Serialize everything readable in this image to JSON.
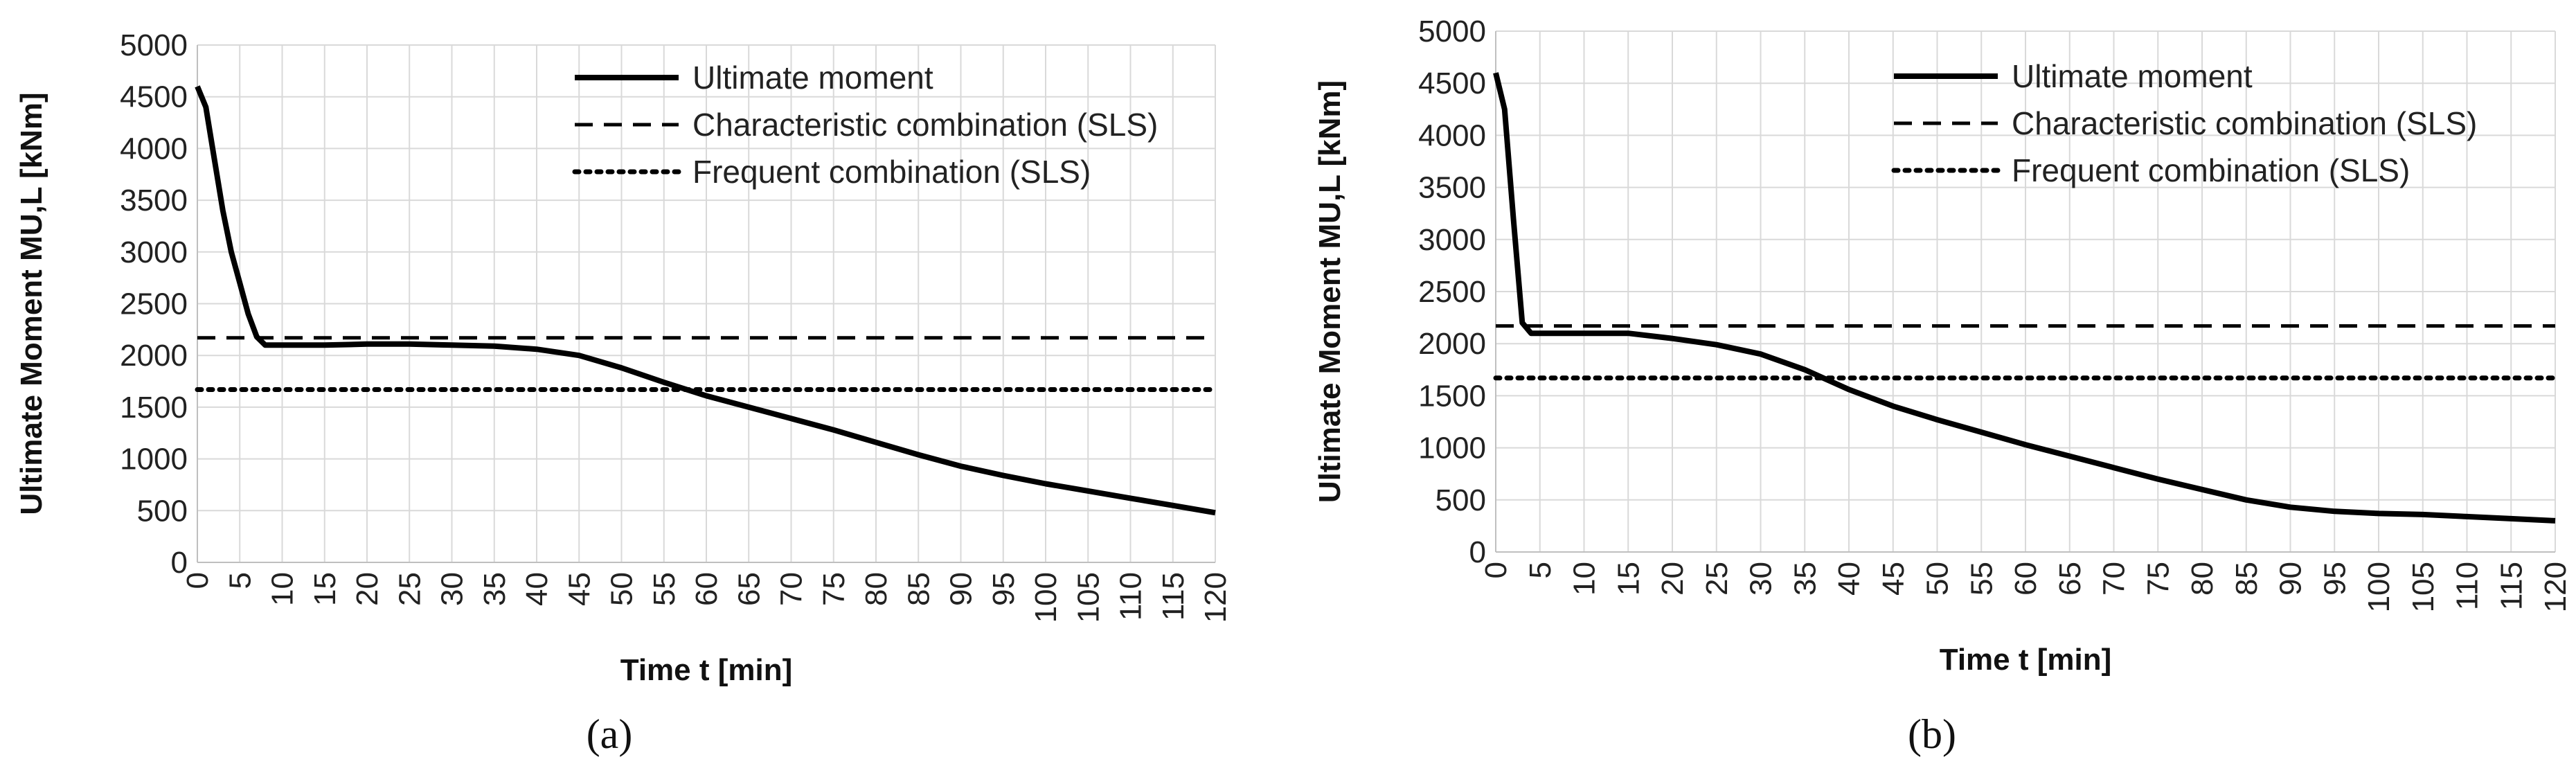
{
  "chart_data": [
    {
      "type": "line",
      "panel_label": "(a)",
      "xlabel": "Time t [min]",
      "ylabel": "Ultimate Moment MU,L [kNm]",
      "xlim": [
        0,
        120
      ],
      "ylim": [
        0,
        5000
      ],
      "x_ticks": [
        0,
        5,
        10,
        15,
        20,
        25,
        30,
        35,
        40,
        45,
        50,
        55,
        60,
        65,
        70,
        75,
        80,
        85,
        90,
        95,
        100,
        105,
        110,
        115,
        120
      ],
      "y_ticks": [
        0,
        500,
        1000,
        1500,
        2000,
        2500,
        3000,
        3500,
        4000,
        4500,
        5000
      ],
      "grid": true,
      "legend_position": "top-right",
      "series": [
        {
          "name": "Ultimate moment",
          "style": "solid",
          "x": [
            0,
            1,
            2,
            3,
            4,
            5,
            6,
            7,
            8,
            10,
            15,
            20,
            25,
            30,
            35,
            40,
            45,
            50,
            55,
            60,
            65,
            70,
            75,
            80,
            85,
            90,
            95,
            100,
            105,
            110,
            115,
            120
          ],
          "y": [
            4600,
            4400,
            3900,
            3400,
            3000,
            2700,
            2400,
            2180,
            2100,
            2100,
            2100,
            2110,
            2110,
            2100,
            2090,
            2060,
            2000,
            1880,
            1740,
            1610,
            1500,
            1390,
            1280,
            1160,
            1040,
            930,
            840,
            760,
            690,
            620,
            550,
            480
          ]
        },
        {
          "name": "Characteristic combination (SLS)",
          "style": "dashed",
          "x": [
            0,
            120
          ],
          "y": [
            2170,
            2170
          ]
        },
        {
          "name": "Frequent combination (SLS)",
          "style": "dotted",
          "x": [
            0,
            120
          ],
          "y": [
            1670,
            1670
          ]
        }
      ]
    },
    {
      "type": "line",
      "panel_label": "(b)",
      "xlabel": "Time t [min]",
      "ylabel": "Ultimate Moment MU,L [kNm]",
      "xlim": [
        0,
        120
      ],
      "ylim": [
        0,
        5000
      ],
      "x_ticks": [
        0,
        5,
        10,
        15,
        20,
        25,
        30,
        35,
        40,
        45,
        50,
        55,
        60,
        65,
        70,
        75,
        80,
        85,
        90,
        95,
        100,
        105,
        110,
        115,
        120
      ],
      "y_ticks": [
        0,
        500,
        1000,
        1500,
        2000,
        2500,
        3000,
        3500,
        4000,
        4500,
        5000
      ],
      "grid": true,
      "legend_position": "top-center",
      "series": [
        {
          "name": "Ultimate moment",
          "style": "solid",
          "x": [
            0,
            1,
            2,
            3,
            4,
            5,
            10,
            15,
            20,
            25,
            30,
            35,
            40,
            45,
            50,
            55,
            60,
            65,
            70,
            75,
            80,
            85,
            90,
            95,
            100,
            105,
            110,
            115,
            120
          ],
          "y": [
            4600,
            4250,
            3200,
            2200,
            2100,
            2100,
            2100,
            2100,
            2050,
            1990,
            1900,
            1750,
            1560,
            1400,
            1270,
            1150,
            1030,
            920,
            810,
            700,
            600,
            500,
            430,
            390,
            370,
            360,
            340,
            320,
            300
          ]
        },
        {
          "name": "Characteristic combination (SLS)",
          "style": "dashed",
          "x": [
            0,
            120
          ],
          "y": [
            2170,
            2170
          ]
        },
        {
          "name": "Frequent combination (SLS)",
          "style": "dotted",
          "x": [
            0,
            120
          ],
          "y": [
            1670,
            1670
          ]
        }
      ]
    }
  ]
}
